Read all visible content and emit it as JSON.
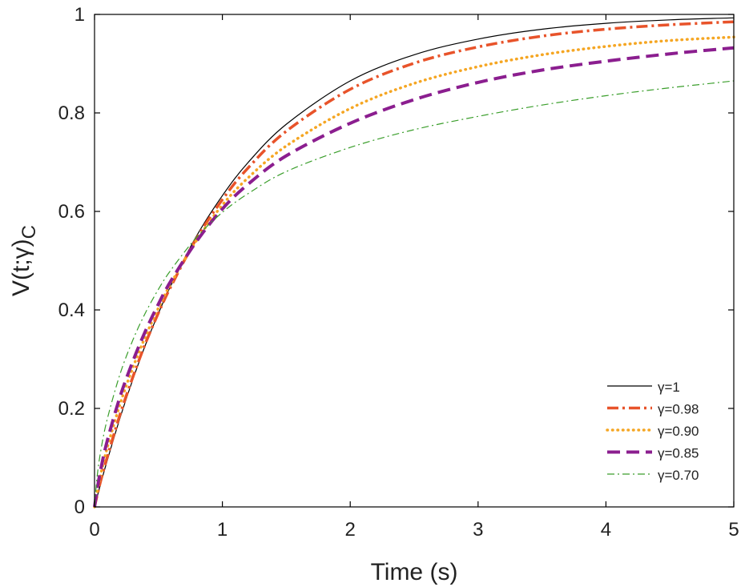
{
  "chart_data": {
    "type": "line",
    "xlabel": "Time (s)",
    "ylabel": "V(t;γ)_C",
    "ylabel_main": "V(t;γ)",
    "ylabel_sub": "C",
    "xlim": [
      0,
      5
    ],
    "ylim": [
      0,
      1
    ],
    "xticks": [
      0,
      1,
      2,
      3,
      4,
      5
    ],
    "yticks": [
      0,
      0.2,
      0.4,
      0.6,
      0.8,
      1
    ],
    "x_tick_labels": [
      "0",
      "1",
      "2",
      "3",
      "4",
      "5"
    ],
    "y_tick_labels": [
      "0",
      "0.2",
      "0.4",
      "0.6",
      "0.8",
      "1"
    ],
    "grid": false,
    "legend_position": "bottom-right",
    "x": [
      0,
      0.02,
      0.05,
      0.1,
      0.2,
      0.3,
      0.4,
      0.5,
      0.6,
      0.8,
      1.0,
      1.2,
      1.5,
      2.0,
      2.5,
      3.0,
      3.5,
      4.0,
      4.5,
      5.0
    ],
    "series": [
      {
        "name": "γ=1",
        "color": "#000000",
        "dash": "solid",
        "width": 1.2,
        "values": [
          0,
          0.02,
          0.049,
          0.095,
          0.181,
          0.259,
          0.33,
          0.393,
          0.451,
          0.551,
          0.632,
          0.699,
          0.777,
          0.865,
          0.918,
          0.95,
          0.97,
          0.982,
          0.989,
          0.993
        ]
      },
      {
        "name": "γ=0.98",
        "color": "#E8532A",
        "dash": "dashdot",
        "width": 3.5,
        "values": [
          0,
          0.023,
          0.055,
          0.102,
          0.188,
          0.264,
          0.333,
          0.394,
          0.449,
          0.546,
          0.624,
          0.688,
          0.763,
          0.848,
          0.901,
          0.934,
          0.956,
          0.97,
          0.979,
          0.985
        ]
      },
      {
        "name": "γ=0.90",
        "color": "#F5A623",
        "dash": "dotted",
        "width": 3.5,
        "values": [
          0,
          0.03,
          0.068,
          0.121,
          0.209,
          0.283,
          0.347,
          0.404,
          0.455,
          0.542,
          0.613,
          0.668,
          0.733,
          0.809,
          0.86,
          0.894,
          0.918,
          0.935,
          0.947,
          0.954
        ]
      },
      {
        "name": "γ=0.85",
        "color": "#8B1E8F",
        "dash": "dashed",
        "width": 4,
        "values": [
          0,
          0.035,
          0.078,
          0.135,
          0.224,
          0.296,
          0.358,
          0.412,
          0.46,
          0.54,
          0.605,
          0.655,
          0.713,
          0.779,
          0.827,
          0.862,
          0.887,
          0.905,
          0.92,
          0.932
        ]
      },
      {
        "name": "γ=0.70",
        "color": "#3A9E2B",
        "dash": "dashdot",
        "width": 1.2,
        "values": [
          0,
          0.061,
          0.116,
          0.179,
          0.27,
          0.339,
          0.395,
          0.442,
          0.482,
          0.548,
          0.598,
          0.636,
          0.681,
          0.73,
          0.766,
          0.793,
          0.816,
          0.835,
          0.851,
          0.865
        ]
      }
    ]
  }
}
